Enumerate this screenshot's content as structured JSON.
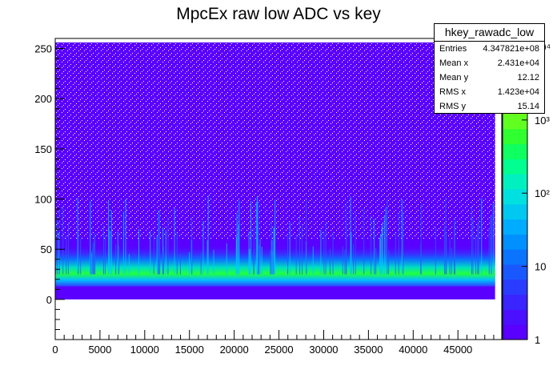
{
  "chart_data": {
    "type": "heatmap",
    "title": "MpcEx raw low ADC vs key",
    "xlabel": "",
    "ylabel": "",
    "xlim": [
      0,
      49900
    ],
    "ylim": [
      -40,
      260
    ],
    "x_ticks": [
      0,
      5000,
      10000,
      15000,
      20000,
      25000,
      30000,
      35000,
      40000,
      45000
    ],
    "y_ticks": [
      0,
      50,
      100,
      150,
      200,
      250
    ],
    "z_scale": "log",
    "z_ticks": [
      "1",
      "10",
      "10²",
      "10³",
      "10⁴"
    ],
    "data_extent": {
      "x": [
        0,
        49152
      ],
      "y": [
        0,
        256
      ]
    },
    "band_center_y": 25,
    "colors": {
      "low": "#5a00ff",
      "mid": "#00e0e0",
      "high": "#00ff40",
      "top": "#ffff00"
    },
    "grid": false
  },
  "stats": {
    "name": "hkey_rawadc_low",
    "rows": [
      {
        "label": "Entries",
        "value": "4.347821e+08"
      },
      {
        "label": "Mean x",
        "value": "2.431e+04"
      },
      {
        "label": "Mean y",
        "value": "12.12"
      },
      {
        "label": "RMS x",
        "value": "1.423e+04"
      },
      {
        "label": "RMS y",
        "value": "15.14"
      }
    ]
  }
}
